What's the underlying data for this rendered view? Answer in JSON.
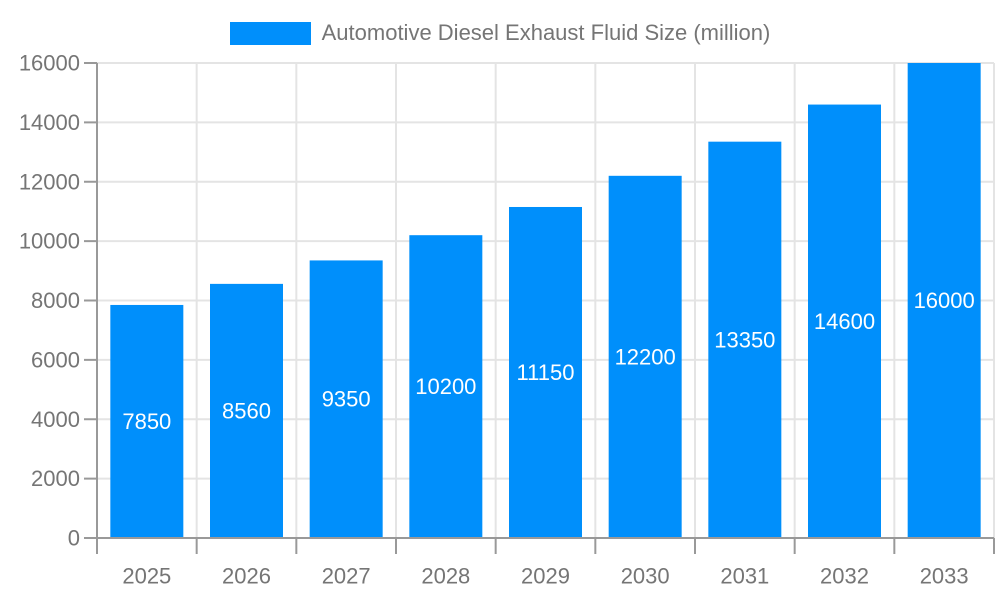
{
  "legend": {
    "series_label": "Automotive Diesel Exhaust Fluid Size (million)"
  },
  "chart_data": {
    "type": "bar",
    "title": "Automotive Diesel Exhaust Fluid Size (million)",
    "categories": [
      "2025",
      "2026",
      "2027",
      "2028",
      "2029",
      "2030",
      "2031",
      "2032",
      "2033"
    ],
    "values": [
      7850,
      8560,
      9350,
      10200,
      11150,
      12200,
      13350,
      14600,
      16000
    ],
    "xlabel": "",
    "ylabel": "",
    "ylim": [
      0,
      16000
    ],
    "ytick_step": 2000,
    "ytick_labels": [
      "0",
      "2000",
      "4000",
      "6000",
      "8000",
      "10000",
      "12000",
      "14000",
      "16000"
    ],
    "grid": true,
    "legend_position": "top",
    "data_labels_position": "inside-center",
    "colors": {
      "bar": "#008FFB",
      "bar_label_text": "#FFFFFF",
      "axis_text": "#757575",
      "grid_line": "#E4E4E4",
      "axis_line": "#999999",
      "tick_line": "#999999",
      "background": "#FFFFFF"
    }
  }
}
